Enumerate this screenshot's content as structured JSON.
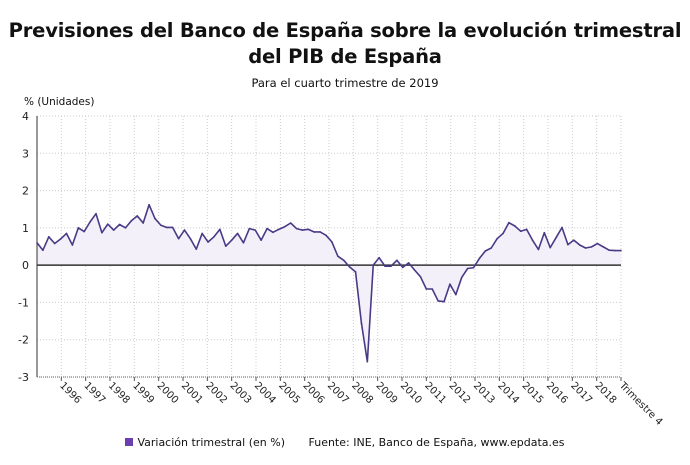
{
  "title": "Previsiones del Banco de España sobre la evolución trimestral del PIB de España",
  "subtitle": "Para el cuarto trimestre de 2019",
  "source": "Fuente: INE, Banco de España, www.epdata.es",
  "colors": {
    "line": "#4a3a86",
    "fill": "#f3f0fa",
    "legend": "#6a3fb0",
    "zero_line": "#333333",
    "grid": "#cccccc"
  },
  "chart_data": {
    "type": "area",
    "title": "Previsiones del Banco de España sobre la evolución trimestral del PIB de España",
    "subtitle": "Para el cuarto trimestre de 2019",
    "ylabel": "% (Unidades)",
    "ylim": [
      -3,
      4
    ],
    "yticks": [
      "4",
      "3",
      "2",
      "1",
      "0",
      "-1",
      "-2",
      "-3"
    ],
    "xticks": [
      "1996",
      "1997",
      "1998",
      "1999",
      "2000",
      "2001",
      "2002",
      "2003",
      "2004",
      "2005",
      "2006",
      "2007",
      "2008",
      "2009",
      "2010",
      "2011",
      "2012",
      "2013",
      "2014",
      "2015",
      "2016",
      "2017",
      "2018",
      "Trimestre 4"
    ],
    "grid": true,
    "legend": "bottom",
    "series": [
      {
        "name": "Variación trimestral (en %)",
        "values": [
          0.6,
          0.4,
          0.76,
          0.58,
          0.7,
          0.85,
          0.54,
          1.0,
          0.9,
          1.16,
          1.38,
          0.87,
          1.1,
          0.94,
          1.09,
          1.0,
          1.19,
          1.32,
          1.13,
          1.62,
          1.25,
          1.07,
          1.01,
          1.01,
          0.71,
          0.94,
          0.71,
          0.43,
          0.85,
          0.62,
          0.76,
          0.96,
          0.51,
          0.67,
          0.85,
          0.6,
          0.98,
          0.94,
          0.67,
          0.98,
          0.88,
          0.96,
          1.03,
          1.13,
          0.98,
          0.94,
          0.96,
          0.89,
          0.89,
          0.8,
          0.62,
          0.24,
          0.13,
          -0.05,
          -0.18,
          -1.56,
          -2.59,
          0.0,
          0.2,
          -0.03,
          -0.03,
          0.13,
          -0.06,
          0.06,
          -0.13,
          -0.31,
          -0.64,
          -0.64,
          -0.96,
          -0.98,
          -0.51,
          -0.79,
          -0.33,
          -0.09,
          -0.07,
          0.18,
          0.38,
          0.46,
          0.71,
          0.85,
          1.14,
          1.05,
          0.91,
          0.96,
          0.67,
          0.42,
          0.87,
          0.47,
          0.74,
          1.01,
          0.55,
          0.67,
          0.54,
          0.46,
          0.49,
          0.58,
          0.49,
          0.4,
          0.39,
          0.39
        ]
      }
    ]
  }
}
